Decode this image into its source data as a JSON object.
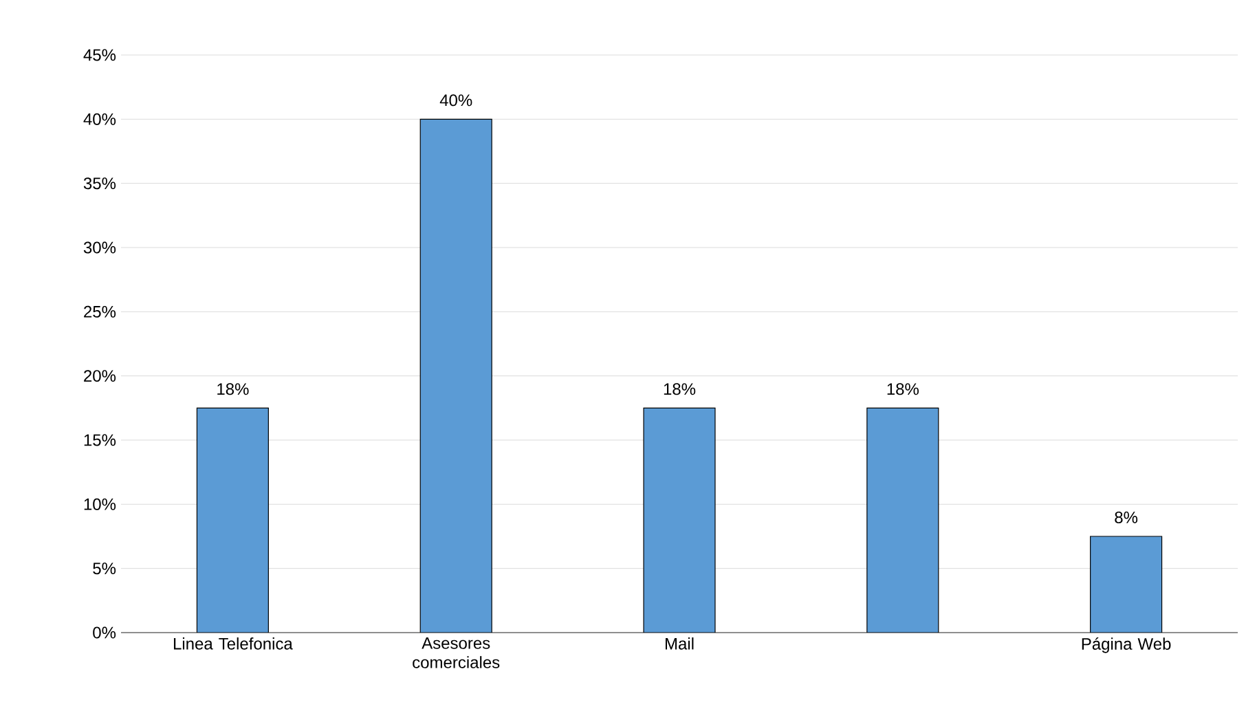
{
  "chart_data": {
    "type": "bar",
    "categories": [
      "Linea Telefonica",
      "Asesores comerciales",
      "Mail",
      null,
      "Página Web"
    ],
    "values": [
      17.5,
      40,
      17.5,
      17.5,
      7.5
    ],
    "value_labels": [
      "18%",
      "40%",
      "18%",
      "18%",
      "8%"
    ],
    "color": "#5b9bd5",
    "ylim": [
      0,
      45
    ],
    "yticks": [
      {
        "value": 0,
        "label": "0%"
      },
      {
        "value": 5,
        "label": "5%"
      },
      {
        "value": 10,
        "label": "10%"
      },
      {
        "value": 15,
        "label": "15%"
      },
      {
        "value": 20,
        "label": "20%"
      },
      {
        "value": 25,
        "label": "25%"
      },
      {
        "value": 30,
        "label": "30%"
      },
      {
        "value": 35,
        "label": "35%"
      },
      {
        "value": 40,
        "label": "40%"
      },
      {
        "value": 45,
        "label": "45%"
      }
    ],
    "grid": "y"
  }
}
